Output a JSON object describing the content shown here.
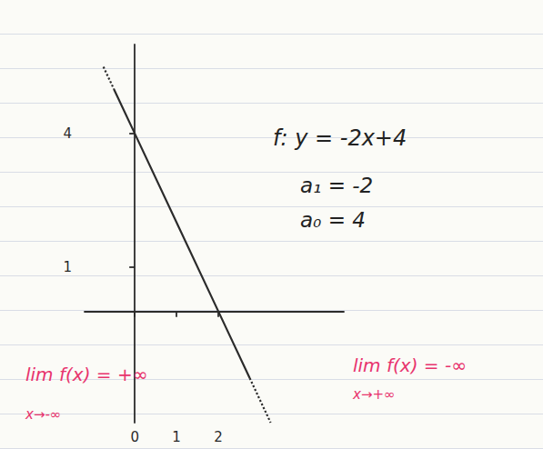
{
  "chart_data": {
    "type": "line",
    "x": [
      -0.75,
      -0.5,
      0,
      1,
      2,
      2.75,
      3.25
    ],
    "series": [
      {
        "color": "#2b2b2b",
        "line_style": "dotted",
        "values": [
          5.5,
          5,
          null,
          null,
          null,
          null,
          null
        ]
      },
      {
        "color": "#2b2b2b",
        "line_style": "solid",
        "values": [
          null,
          5,
          4,
          2,
          0,
          -1.5,
          null
        ]
      },
      {
        "color": "#2b2b2b",
        "line_style": "dotted",
        "values": [
          null,
          null,
          null,
          null,
          null,
          -1.5,
          -2.5
        ]
      }
    ],
    "xlim": [
      -1.2,
      5
    ],
    "ylim": [
      -2.5,
      6
    ],
    "xticks": [
      0,
      1,
      2
    ],
    "yticks": [
      1,
      4
    ],
    "grid": false,
    "annotations": [
      {
        "text": "f: y = -2x+4",
        "color": "#222222"
      },
      {
        "text": "a₁ = -2",
        "color": "#222222"
      },
      {
        "text": "a₀ = 4",
        "color": "#222222"
      },
      {
        "text": "lim f(x) = +∞",
        "color": "#e8336d"
      },
      {
        "text": "x→-∞",
        "color": "#e8336d"
      },
      {
        "text": "lim f(x) = -∞",
        "color": "#e8336d"
      },
      {
        "text": "x→+∞",
        "color": "#e8336d"
      }
    ]
  }
}
